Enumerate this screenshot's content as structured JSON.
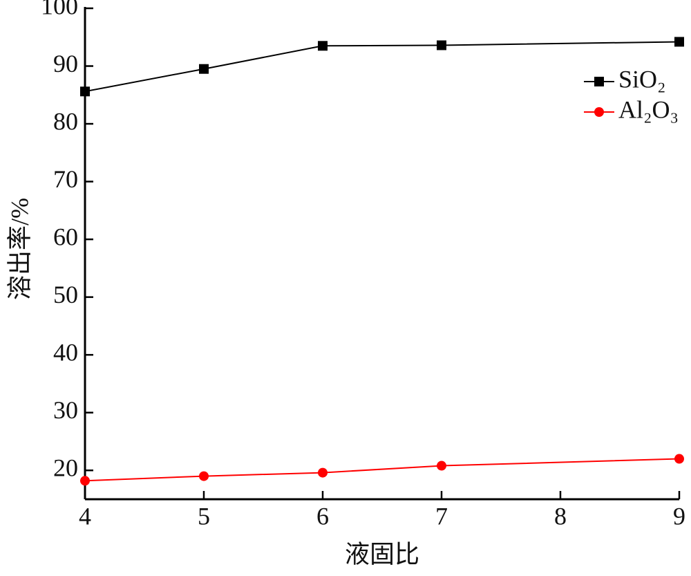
{
  "chart_data": {
    "type": "line",
    "x_label": "液固比",
    "y_label": "溶出率/%",
    "x": [
      4,
      5,
      6,
      7,
      9
    ],
    "series": [
      {
        "name": "SiO₂",
        "color": "#000000",
        "marker": "square",
        "values": [
          85.6,
          89.5,
          93.5,
          93.6,
          94.2
        ]
      },
      {
        "name": "Al₂O₃",
        "color": "#ff0000",
        "marker": "circle",
        "values": [
          18.2,
          19.0,
          19.6,
          20.8,
          22.0
        ]
      }
    ],
    "xlim": [
      4,
      9
    ],
    "xticks": [
      4,
      5,
      6,
      7,
      8,
      9
    ],
    "ylim": [
      15,
      100
    ],
    "yticks": [
      20,
      30,
      40,
      50,
      60,
      70,
      80,
      90,
      100
    ],
    "legend": "upper right",
    "grid": false
  }
}
